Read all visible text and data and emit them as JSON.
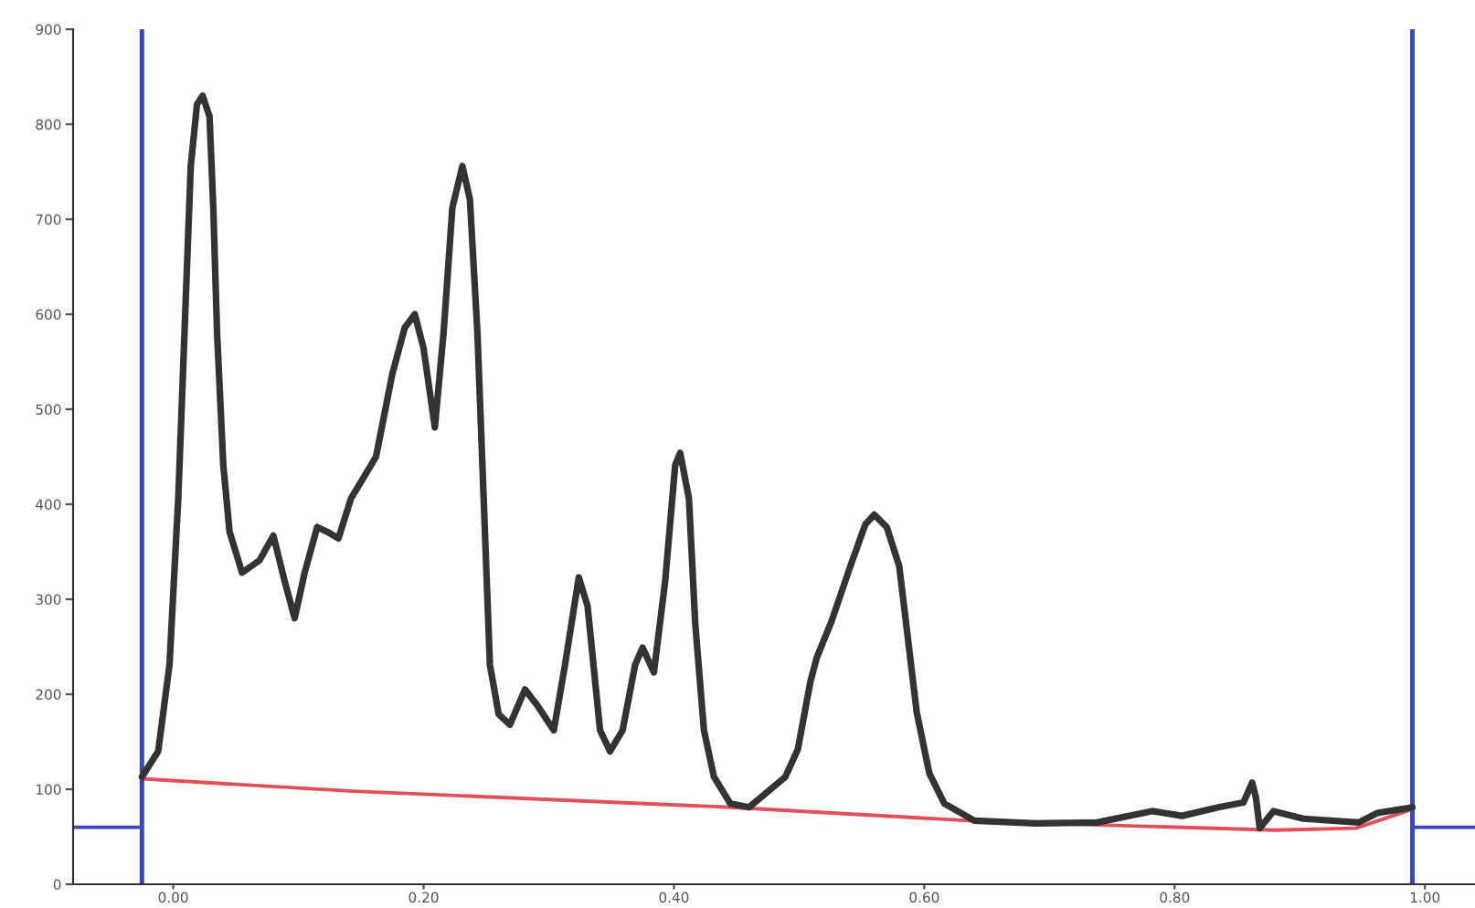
{
  "chart_data": {
    "type": "line",
    "xlim": [
      -0.08,
      1.04
    ],
    "ylim": [
      0,
      900
    ],
    "xticks": [
      {
        "value": 0,
        "label": "0.00"
      },
      {
        "value": 0.2,
        "label": "0.20"
      },
      {
        "value": 0.4,
        "label": "0.40"
      },
      {
        "value": 0.6,
        "label": "0.60"
      },
      {
        "value": 0.8,
        "label": "0.80"
      },
      {
        "value": 1.0,
        "label": "1.00"
      }
    ],
    "yticks": [
      0,
      100,
      200,
      300,
      400,
      500,
      600,
      700,
      800,
      900
    ],
    "ref_lines": [
      {
        "axis": "x",
        "value": -0.025,
        "color": "#3a46c8"
      },
      {
        "axis": "x",
        "value": 0.99,
        "color": "#3a46c8"
      }
    ],
    "series": [
      {
        "color": "#333333",
        "x": [
          -0.025,
          -0.012,
          -0.003,
          0.004,
          0.009,
          0.014,
          0.019,
          0.0235,
          0.029,
          0.032,
          0.035,
          0.04,
          0.045,
          0.055,
          0.069,
          0.08,
          0.089,
          0.097,
          0.105,
          0.115,
          0.123,
          0.132,
          0.142,
          0.152,
          0.162,
          0.175,
          0.185,
          0.193,
          0.2,
          0.209,
          0.216,
          0.223,
          0.231,
          0.237,
          0.243,
          0.248,
          0.253,
          0.26,
          0.269,
          0.281,
          0.291,
          0.304,
          0.313,
          0.324,
          0.331,
          0.341,
          0.349,
          0.359,
          0.369,
          0.375,
          0.384,
          0.393,
          0.401,
          0.405,
          0.412,
          0.417,
          0.424,
          0.432,
          0.445,
          0.46,
          0.489,
          0.499,
          0.509,
          0.514,
          0.526,
          0.541,
          0.553,
          0.56,
          0.57,
          0.58,
          0.587,
          0.594,
          0.604,
          0.616,
          0.64,
          0.689,
          0.738,
          0.782,
          0.806,
          0.835,
          0.855,
          0.862,
          0.865,
          0.868,
          0.879,
          0.903,
          0.947,
          0.962,
          0.99
        ],
        "values": [
          113,
          140,
          231,
          406,
          581,
          756,
          821,
          830,
          808,
          712,
          581,
          441,
          371,
          328,
          341,
          367,
          319,
          280,
          328,
          376,
          371,
          364,
          406,
          428,
          450,
          537,
          586,
          600,
          564,
          481,
          581,
          712,
          756,
          721,
          581,
          406,
          231,
          179,
          168,
          205,
          188,
          162,
          231,
          323,
          293,
          162,
          140,
          162,
          231,
          249,
          223,
          319,
          441,
          454,
          406,
          275,
          162,
          113,
          85,
          81,
          113,
          142,
          213,
          238,
          277,
          335,
          379,
          389,
          376,
          335,
          258,
          181,
          117,
          85,
          67,
          64,
          65,
          77,
          72,
          81,
          86,
          107,
          91,
          59,
          77,
          69,
          65,
          75,
          81
        ]
      },
      {
        "color": "#e0505a",
        "x": [
          -0.025,
          0.144,
          0.445,
          0.649,
          0.88,
          0.945,
          0.99
        ],
        "values": [
          111,
          98,
          81,
          66,
          57,
          59,
          79
        ]
      },
      {
        "color": "#3a46c8",
        "x": [
          -0.08,
          -0.025
        ],
        "values": [
          60,
          60
        ]
      },
      {
        "color": "#3a46c8",
        "x": [
          0.99,
          1.04
        ],
        "values": [
          60,
          60
        ]
      }
    ]
  }
}
